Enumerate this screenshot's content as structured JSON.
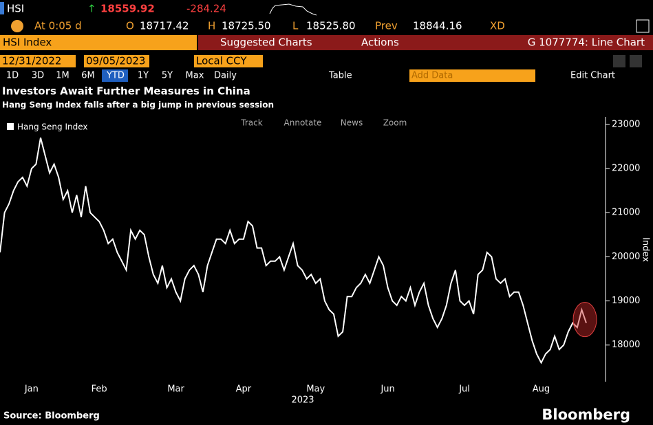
{
  "header": {
    "ticker": "HSI",
    "arrow": "↑",
    "last": "18559.92",
    "change": "-284.24",
    "time": "At 0:05 d",
    "open_label": "O",
    "open": "18717.42",
    "high_label": "H",
    "high": "18725.50",
    "low_label": "L",
    "low": "18525.80",
    "prev_label": "Prev",
    "prev": "18844.16",
    "flag": "XD"
  },
  "menu": {
    "security": "HSI Index",
    "suggested": "Suggested Charts",
    "actions": "Actions",
    "chart_id": "G 1077774: Line Chart"
  },
  "range": {
    "start": "12/31/2022",
    "end": "09/05/2023",
    "currency": "Local CCY"
  },
  "toolbar": {
    "periods": [
      "1D",
      "3D",
      "1M",
      "6M",
      "YTD",
      "1Y",
      "5Y",
      "Max"
    ],
    "frequency": "Daily",
    "table": "Table",
    "add_data": "Add Data",
    "edit": "Edit Chart"
  },
  "chart_tools": [
    "Track",
    "Annotate",
    "News",
    "Zoom"
  ],
  "footer": {
    "source": "Source: Bloomberg",
    "brand": "Bloomberg"
  },
  "chart_data": {
    "type": "line",
    "title": "Investors Await Further Measures in China",
    "subtitle": "Hang Seng Index falls after a big jump in previous session",
    "xlabel": "2023",
    "ylabel": "Index",
    "legend": "upper left",
    "grid": false,
    "ylim": [
      17170,
      23170
    ],
    "yticks": [
      18000,
      19000,
      20000,
      21000,
      22000,
      23000
    ],
    "categories": [
      null,
      null,
      null,
      null,
      null,
      null,
      null,
      "Jan",
      null,
      null,
      null,
      null,
      null,
      null,
      null,
      null,
      null,
      null,
      null,
      null,
      null,
      null,
      "Feb",
      null,
      null,
      null,
      null,
      null,
      null,
      null,
      null,
      null,
      null,
      null,
      null,
      null,
      null,
      null,
      null,
      "Mar",
      null,
      null,
      null,
      null,
      null,
      null,
      null,
      null,
      null,
      null,
      null,
      null,
      null,
      null,
      "Apr",
      null,
      null,
      null,
      null,
      null,
      null,
      null,
      null,
      null,
      null,
      null,
      null,
      null,
      null,
      null,
      "May",
      null,
      null,
      null,
      null,
      null,
      null,
      null,
      null,
      null,
      null,
      null,
      null,
      null,
      null,
      null,
      "Jun",
      null,
      null,
      null,
      null,
      null,
      null,
      null,
      null,
      null,
      null,
      null,
      null,
      null,
      null,
      null,
      null,
      "Jul",
      null,
      null,
      null,
      null,
      null,
      null,
      null,
      null,
      null,
      null,
      null,
      null,
      null,
      null,
      null,
      null,
      "Aug",
      null,
      null,
      null,
      null,
      null,
      null,
      null,
      null,
      null,
      null
    ],
    "series": [
      {
        "name": "Hang Seng Index",
        "color": "#ffffff",
        "values": [
          20100,
          21000,
          21200,
          21500,
          21700,
          21800,
          21600,
          22000,
          22100,
          22700,
          22300,
          21900,
          22100,
          21800,
          21300,
          21500,
          21000,
          21400,
          20900,
          21600,
          21000,
          20900,
          20800,
          20600,
          20300,
          20400,
          20100,
          19900,
          19700,
          20600,
          20400,
          20600,
          20500,
          20000,
          19600,
          19400,
          19800,
          19300,
          19500,
          19200,
          19000,
          19500,
          19700,
          19800,
          19600,
          19200,
          19800,
          20100,
          20400,
          20400,
          20300,
          20600,
          20300,
          20400,
          20400,
          20800,
          20700,
          20200,
          20200,
          19800,
          19900,
          19900,
          20000,
          19700,
          20000,
          20300,
          19800,
          19700,
          19500,
          19600,
          19400,
          19500,
          19000,
          18800,
          18700,
          18200,
          18300,
          19100,
          19100,
          19300,
          19400,
          19600,
          19400,
          19700,
          20000,
          19800,
          19300,
          19000,
          18900,
          19100,
          19000,
          19300,
          18900,
          19200,
          19400,
          18900,
          18600,
          18400,
          18600,
          18900,
          19400,
          19700,
          19000,
          18900,
          19000,
          18700,
          19600,
          19700,
          20100,
          20000,
          19500,
          19400,
          19500,
          19100,
          19200,
          19200,
          18900,
          18500,
          18100,
          17800,
          17600,
          17800,
          17900,
          18200,
          17900,
          18000,
          18300,
          18500,
          18400,
          18800,
          18500
        ]
      }
    ]
  }
}
